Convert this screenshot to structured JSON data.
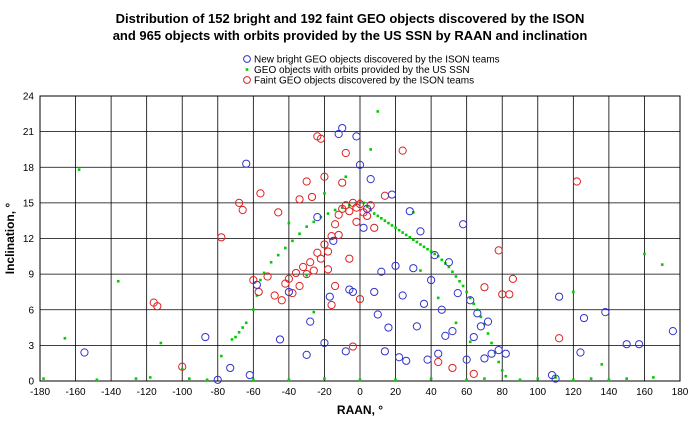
{
  "title_line1": "Distribution of 152 bright and 192 faint GEO objects discovered by the ISON",
  "title_line2": "and 965 objects with orbits provided by the US SSN by RAAN and inclination",
  "chart_data": {
    "type": "scatter",
    "xlabel": "RAAN, °",
    "ylabel": "Inclination, °",
    "xlim": [
      -180,
      180
    ],
    "ylim": [
      0,
      24
    ],
    "xticks": [
      "-180",
      "-160",
      "-140",
      "-120",
      "-100",
      "-80",
      "-60",
      "-40",
      "-20",
      "0",
      "20",
      "40",
      "60",
      "80",
      "100",
      "120",
      "140",
      "160",
      "180"
    ],
    "yticks": [
      "0",
      "3",
      "6",
      "9",
      "12",
      "15",
      "18",
      "21",
      "24"
    ],
    "grid": true,
    "legend_position": "top-center",
    "series": [
      {
        "name": "New bright GEO objects discovered by the ISON teams",
        "marker": "open-circle",
        "color": "#3333cc",
        "points": [
          [
            -155,
            2.4
          ],
          [
            -87,
            3.7
          ],
          [
            -80,
            0.1
          ],
          [
            -73,
            1.1
          ],
          [
            -64,
            18.3
          ],
          [
            -62,
            0.5
          ],
          [
            -58,
            8.1
          ],
          [
            -45,
            3.5
          ],
          [
            -40,
            7.5
          ],
          [
            -30,
            2.2
          ],
          [
            -28,
            5.0
          ],
          [
            -24,
            13.8
          ],
          [
            -20,
            3.2
          ],
          [
            -17,
            7.1
          ],
          [
            -15,
            11.8
          ],
          [
            -12,
            20.8
          ],
          [
            -10,
            21.3
          ],
          [
            -8,
            2.5
          ],
          [
            -6,
            7.7
          ],
          [
            -4,
            7.5
          ],
          [
            -2,
            20.6
          ],
          [
            0,
            18.2
          ],
          [
            2,
            12.9
          ],
          [
            4,
            14.5
          ],
          [
            6,
            17.0
          ],
          [
            8,
            7.5
          ],
          [
            10,
            5.6
          ],
          [
            12,
            9.2
          ],
          [
            14,
            2.5
          ],
          [
            16,
            4.5
          ],
          [
            18,
            15.7
          ],
          [
            20,
            9.7
          ],
          [
            22,
            2.0
          ],
          [
            24,
            7.2
          ],
          [
            26,
            1.7
          ],
          [
            28,
            14.3
          ],
          [
            30,
            9.5
          ],
          [
            32,
            4.6
          ],
          [
            34,
            12.6
          ],
          [
            36,
            6.5
          ],
          [
            38,
            1.8
          ],
          [
            40,
            8.5
          ],
          [
            42,
            10.6
          ],
          [
            44,
            2.3
          ],
          [
            46,
            6.0
          ],
          [
            48,
            3.8
          ],
          [
            50,
            10.0
          ],
          [
            52,
            4.2
          ],
          [
            55,
            7.4
          ],
          [
            58,
            13.2
          ],
          [
            60,
            1.8
          ],
          [
            62,
            6.8
          ],
          [
            64,
            3.7
          ],
          [
            66,
            5.7
          ],
          [
            68,
            4.6
          ],
          [
            70,
            1.9
          ],
          [
            72,
            5.0
          ],
          [
            74,
            2.3
          ],
          [
            78,
            2.6
          ],
          [
            82,
            2.3
          ],
          [
            108,
            0.5
          ],
          [
            110,
            0.2
          ],
          [
            112,
            7.1
          ],
          [
            124,
            2.4
          ],
          [
            126,
            5.3
          ],
          [
            138,
            5.8
          ],
          [
            150,
            3.1
          ],
          [
            157,
            3.1
          ],
          [
            176,
            4.2
          ]
        ]
      },
      {
        "name": "GEO objects with orbits provided by the US SSN",
        "marker": "dot",
        "color": "#00cc00",
        "points": [
          [
            -178,
            0.2
          ],
          [
            -166,
            3.6
          ],
          [
            -158,
            17.8
          ],
          [
            -148,
            0.1
          ],
          [
            -136,
            8.4
          ],
          [
            -126,
            0.2
          ],
          [
            -118,
            0.3
          ],
          [
            -112,
            3.2
          ],
          [
            -100,
            1.0
          ],
          [
            -96,
            0.2
          ],
          [
            -86,
            0.1
          ],
          [
            -78,
            2.1
          ],
          [
            -72,
            3.5
          ],
          [
            -70,
            3.7
          ],
          [
            -68,
            4.1
          ],
          [
            -66,
            4.5
          ],
          [
            -64,
            4.9
          ],
          [
            -60,
            6.0
          ],
          [
            -58,
            7.2
          ],
          [
            -56,
            8.5
          ],
          [
            -54,
            9.1
          ],
          [
            -50,
            10.0
          ],
          [
            -46,
            10.6
          ],
          [
            -42,
            11.2
          ],
          [
            -38,
            11.8
          ],
          [
            -34,
            12.4
          ],
          [
            -30,
            13.0
          ],
          [
            -26,
            13.4
          ],
          [
            -22,
            13.8
          ],
          [
            -18,
            14.1
          ],
          [
            -14,
            14.4
          ],
          [
            -10,
            14.6
          ],
          [
            -6,
            14.8
          ],
          [
            -2,
            15.0
          ],
          [
            0,
            15.2
          ],
          [
            2,
            15.0
          ],
          [
            4,
            14.7
          ],
          [
            6,
            14.4
          ],
          [
            8,
            14.1
          ],
          [
            10,
            13.9
          ],
          [
            12,
            13.7
          ],
          [
            14,
            13.5
          ],
          [
            16,
            13.3
          ],
          [
            18,
            13.1
          ],
          [
            20,
            12.9
          ],
          [
            22,
            12.7
          ],
          [
            24,
            12.5
          ],
          [
            26,
            12.3
          ],
          [
            28,
            12.1
          ],
          [
            30,
            11.9
          ],
          [
            32,
            11.7
          ],
          [
            34,
            11.5
          ],
          [
            36,
            11.3
          ],
          [
            38,
            11.1
          ],
          [
            40,
            10.9
          ],
          [
            42,
            10.7
          ],
          [
            44,
            10.5
          ],
          [
            46,
            10.2
          ],
          [
            48,
            9.9
          ],
          [
            50,
            9.6
          ],
          [
            52,
            9.2
          ],
          [
            54,
            8.8
          ],
          [
            56,
            8.4
          ],
          [
            58,
            8.0
          ],
          [
            60,
            7.5
          ],
          [
            62,
            7.0
          ],
          [
            64,
            6.5
          ],
          [
            66,
            6.0
          ],
          [
            68,
            5.4
          ],
          [
            70,
            4.8
          ],
          [
            72,
            4.0
          ],
          [
            74,
            3.2
          ],
          [
            76,
            2.4
          ],
          [
            78,
            1.6
          ],
          [
            80,
            0.9
          ],
          [
            82,
            0.4
          ],
          [
            10,
            22.7
          ],
          [
            6,
            19.5
          ],
          [
            -20,
            15.8
          ],
          [
            30,
            14.2
          ],
          [
            -8,
            17.2
          ],
          [
            34,
            9.3
          ],
          [
            44,
            7.0
          ],
          [
            54,
            4.9
          ],
          [
            62,
            3.3
          ],
          [
            -40,
            13.3
          ],
          [
            -30,
            8.9
          ],
          [
            -26,
            5.8
          ],
          [
            -60,
            0.1
          ],
          [
            -40,
            0.1
          ],
          [
            -20,
            0.2
          ],
          [
            0,
            0.1
          ],
          [
            20,
            0.1
          ],
          [
            40,
            0.2
          ],
          [
            60,
            0.1
          ],
          [
            70,
            0.2
          ],
          [
            90,
            0.1
          ],
          [
            100,
            0.2
          ],
          [
            110,
            0.3
          ],
          [
            120,
            0.1
          ],
          [
            130,
            0.2
          ],
          [
            140,
            0.1
          ],
          [
            150,
            0.2
          ],
          [
            165,
            0.3
          ],
          [
            160,
            10.7
          ],
          [
            170,
            9.8
          ],
          [
            136,
            1.4
          ],
          [
            120,
            7.5
          ]
        ]
      },
      {
        "name": "Faint GEO objects discovered by the ISON teams",
        "marker": "open-circle",
        "color": "#dd2222",
        "points": [
          [
            -116,
            6.6
          ],
          [
            -114,
            6.3
          ],
          [
            -100,
            1.2
          ],
          [
            -78,
            12.1
          ],
          [
            -68,
            15.0
          ],
          [
            -66,
            14.4
          ],
          [
            -60,
            8.5
          ],
          [
            -57,
            7.5
          ],
          [
            -56,
            15.8
          ],
          [
            -52,
            8.8
          ],
          [
            -48,
            7.2
          ],
          [
            -46,
            14.2
          ],
          [
            -44,
            6.8
          ],
          [
            -42,
            8.2
          ],
          [
            -40,
            8.6
          ],
          [
            -38,
            7.4
          ],
          [
            -36,
            9.1
          ],
          [
            -34,
            8.0
          ],
          [
            -32,
            9.6
          ],
          [
            -30,
            9.0
          ],
          [
            -28,
            10.0
          ],
          [
            -26,
            9.3
          ],
          [
            -24,
            10.8
          ],
          [
            -22,
            10.3
          ],
          [
            -20,
            11.5
          ],
          [
            -18,
            10.9
          ],
          [
            -16,
            12.2
          ],
          [
            -14,
            13.2
          ],
          [
            -12,
            14.0
          ],
          [
            -10,
            14.5
          ],
          [
            -8,
            14.8
          ],
          [
            -6,
            14.3
          ],
          [
            -4,
            15.0
          ],
          [
            -2,
            14.6
          ],
          [
            0,
            14.9
          ],
          [
            2,
            14.2
          ],
          [
            4,
            13.9
          ],
          [
            -34,
            15.3
          ],
          [
            -30,
            16.8
          ],
          [
            -27,
            15.5
          ],
          [
            -24,
            20.6
          ],
          [
            -22,
            20.4
          ],
          [
            -20,
            17.2
          ],
          [
            -18,
            9.4
          ],
          [
            -16,
            6.4
          ],
          [
            -14,
            8.0
          ],
          [
            -12,
            12.3
          ],
          [
            -10,
            16.7
          ],
          [
            -8,
            19.2
          ],
          [
            -6,
            10.3
          ],
          [
            -4,
            2.9
          ],
          [
            -2,
            13.4
          ],
          [
            0,
            6.9
          ],
          [
            6,
            14.8
          ],
          [
            8,
            12.9
          ],
          [
            14,
            15.6
          ],
          [
            24,
            19.4
          ],
          [
            44,
            1.6
          ],
          [
            52,
            1.1
          ],
          [
            64,
            0.6
          ],
          [
            70,
            7.9
          ],
          [
            78,
            11.0
          ],
          [
            80,
            7.3
          ],
          [
            84,
            7.3
          ],
          [
            86,
            8.6
          ],
          [
            112,
            3.6
          ],
          [
            122,
            16.8
          ]
        ]
      }
    ]
  }
}
